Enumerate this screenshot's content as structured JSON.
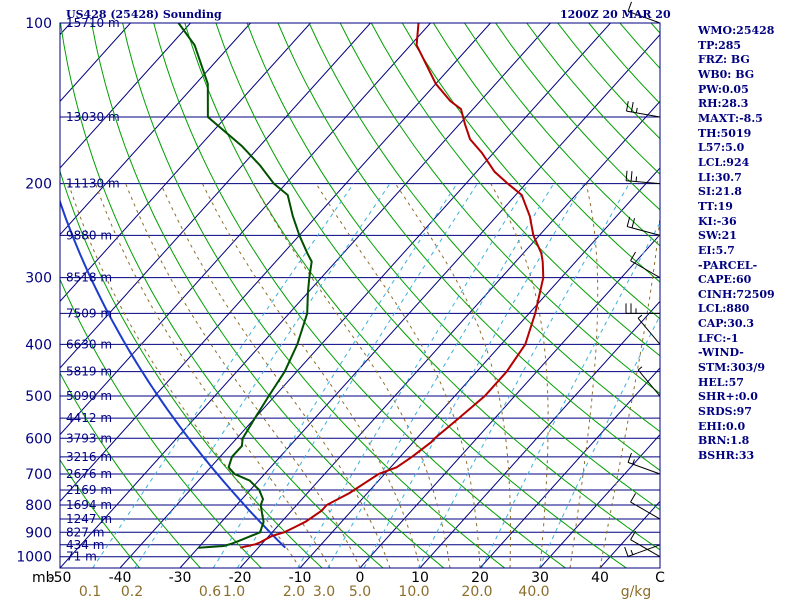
{
  "header": {
    "station": "US428 (25428) Sounding",
    "time": "1200Z 20 MAR 20"
  },
  "colors": {
    "isobar": "#000080",
    "isotherm": "#000080",
    "dry_adiabat": "#00a000",
    "moist_adiabat": "#8c6e2c",
    "mixing_ratio": "#3cb0dc",
    "temperature": "#b40000",
    "dewpoint": "#005000",
    "parcel": "#1c3ccc",
    "wind_barb": "#000000",
    "axis_text_primary": "#000080",
    "mixing_ratio_text": "#8c6e2c"
  },
  "indices": [
    "WMO:25428",
    "TP:285",
    "FRZ: BG",
    "WB0: BG",
    "PW:0.05",
    "RH:28.3",
    "MAXT:-8.5",
    "TH:5019",
    "L57:5.0",
    "LCL:924",
    "LI:30.7",
    "SI:21.8",
    "TT:19",
    "KI:-36",
    "SW:21",
    "EI:5.7",
    "-PARCEL-",
    "CAPE:60",
    "CINH:72509",
    "LCL:880",
    "CAP:30.3",
    "LFC:-1",
    "-WIND-",
    "STM:303/9",
    "HEL:57",
    "SHR+:0.0",
    "SRDS:97",
    "EHI:0.0",
    "BRN:1.8",
    "BSHR:33"
  ],
  "chart_data": {
    "type": "line",
    "title": "US428 (25428) Sounding",
    "subtitle": "1200Z 20 MAR 20",
    "y_axis": "pressure (mb), log scale, reversed",
    "ylim": [
      1050,
      100
    ],
    "xlim": [
      -50,
      50
    ],
    "x_unit": "C",
    "pressure_ticks": [
      100,
      200,
      300,
      400,
      500,
      600,
      700,
      800,
      900,
      1000
    ],
    "axis_unit_label": "mb",
    "temperature_ticks": [
      "-50",
      "-40",
      "-30",
      "-20",
      "-10",
      "0",
      "10",
      "20",
      "30",
      "40",
      "C"
    ],
    "temperature_tick_values": [
      -50,
      -40,
      -30,
      -20,
      -10,
      0,
      10,
      20,
      30,
      40,
      50
    ],
    "mixing_ratio_labels": [
      "0.1",
      "0.2",
      "0.6",
      "1.0",
      "2.0",
      "3.0",
      "5.0",
      "10.0",
      "20.0",
      "40.0",
      "g/kg"
    ],
    "mixing_ratio_label_x": [
      -45,
      -38,
      -25,
      -21,
      -11,
      -6,
      0,
      9,
      19.5,
      29,
      46
    ],
    "height_labels": [
      {
        "p": 100,
        "text": "15710 m"
      },
      {
        "p": 150,
        "text": "13030 m"
      },
      {
        "p": 200,
        "text": "11130 m"
      },
      {
        "p": 250,
        "text": "9880 m"
      },
      {
        "p": 300,
        "text": "8518 m"
      },
      {
        "p": 350,
        "text": "7509 m"
      },
      {
        "p": 400,
        "text": "6630 m"
      },
      {
        "p": 450,
        "text": "5819 m"
      },
      {
        "p": 500,
        "text": "5090 m"
      },
      {
        "p": 550,
        "text": "4412 m"
      },
      {
        "p": 600,
        "text": "3793 m"
      },
      {
        "p": 650,
        "text": "3216 m"
      },
      {
        "p": 700,
        "text": "2676 m"
      },
      {
        "p": 750,
        "text": "2169 m"
      },
      {
        "p": 800,
        "text": "1694 m"
      },
      {
        "p": 850,
        "text": "1247 m"
      },
      {
        "p": 900,
        "text": "827 m"
      },
      {
        "p": 950,
        "text": "434 m"
      },
      {
        "p": 1000,
        "text": "71 m"
      }
    ],
    "series": [
      {
        "name": "Temperature",
        "points": [
          [
            962,
            -23
          ],
          [
            948,
            -21
          ],
          [
            940,
            -20.5
          ],
          [
            915,
            -19.5
          ],
          [
            900,
            -18
          ],
          [
            880,
            -17
          ],
          [
            860,
            -16
          ],
          [
            820,
            -15
          ],
          [
            800,
            -15
          ],
          [
            760,
            -13
          ],
          [
            700,
            -11
          ],
          [
            680,
            -9
          ],
          [
            650,
            -8
          ],
          [
            610,
            -7
          ],
          [
            600,
            -7
          ],
          [
            550,
            -6
          ],
          [
            500,
            -5
          ],
          [
            450,
            -5
          ],
          [
            400,
            -6
          ],
          [
            350,
            -9
          ],
          [
            300,
            -13
          ],
          [
            280,
            -15.5
          ],
          [
            270,
            -17
          ],
          [
            250,
            -21
          ],
          [
            230,
            -24.5
          ],
          [
            210,
            -29
          ],
          [
            200,
            -33
          ],
          [
            190,
            -37
          ],
          [
            175,
            -42
          ],
          [
            165,
            -46
          ],
          [
            155,
            -49
          ],
          [
            145,
            -52
          ],
          [
            140,
            -55
          ],
          [
            130,
            -60
          ],
          [
            110,
            -69
          ],
          [
            100,
            -72
          ]
        ]
      },
      {
        "name": "Dewpoint",
        "points": [
          [
            962,
            -30
          ],
          [
            955,
            -26
          ],
          [
            945,
            -25
          ],
          [
            930,
            -24
          ],
          [
            915,
            -23
          ],
          [
            900,
            -22
          ],
          [
            880,
            -22.5
          ],
          [
            860,
            -23
          ],
          [
            840,
            -24
          ],
          [
            800,
            -26
          ],
          [
            780,
            -26.5
          ],
          [
            750,
            -28.5
          ],
          [
            720,
            -31.5
          ],
          [
            700,
            -35
          ],
          [
            680,
            -37
          ],
          [
            650,
            -38
          ],
          [
            620,
            -38
          ],
          [
            600,
            -39
          ],
          [
            550,
            -40
          ],
          [
            500,
            -41
          ],
          [
            450,
            -42
          ],
          [
            400,
            -44
          ],
          [
            350,
            -47
          ],
          [
            320,
            -50
          ],
          [
            300,
            -52
          ],
          [
            280,
            -54
          ],
          [
            270,
            -56
          ],
          [
            250,
            -60
          ],
          [
            230,
            -64
          ],
          [
            210,
            -68
          ],
          [
            200,
            -72
          ],
          [
            185,
            -77
          ],
          [
            170,
            -83
          ],
          [
            150,
            -93
          ],
          [
            130,
            -98
          ],
          [
            110,
            -106
          ],
          [
            100,
            -112
          ]
        ]
      }
    ],
    "wind_barbs": [
      {
        "p": 100,
        "dir": 290,
        "spd": 10
      },
      {
        "p": 150,
        "dir": 280,
        "spd": 25
      },
      {
        "p": 200,
        "dir": 275,
        "spd": 25
      },
      {
        "p": 250,
        "dir": 285,
        "spd": 20
      },
      {
        "p": 300,
        "dir": 300,
        "spd": 10
      },
      {
        "p": 350,
        "dir": 270,
        "spd": 25
      },
      {
        "p": 400,
        "dir": 320,
        "spd": 5
      },
      {
        "p": 500,
        "dir": 320,
        "spd": 5
      },
      {
        "p": 700,
        "dir": 290,
        "spd": 15
      },
      {
        "p": 850,
        "dir": 300,
        "spd": 10
      },
      {
        "p": 950,
        "dir": 250,
        "spd": 15
      },
      {
        "p": 1000,
        "dir": 300,
        "spd": 10
      }
    ]
  }
}
